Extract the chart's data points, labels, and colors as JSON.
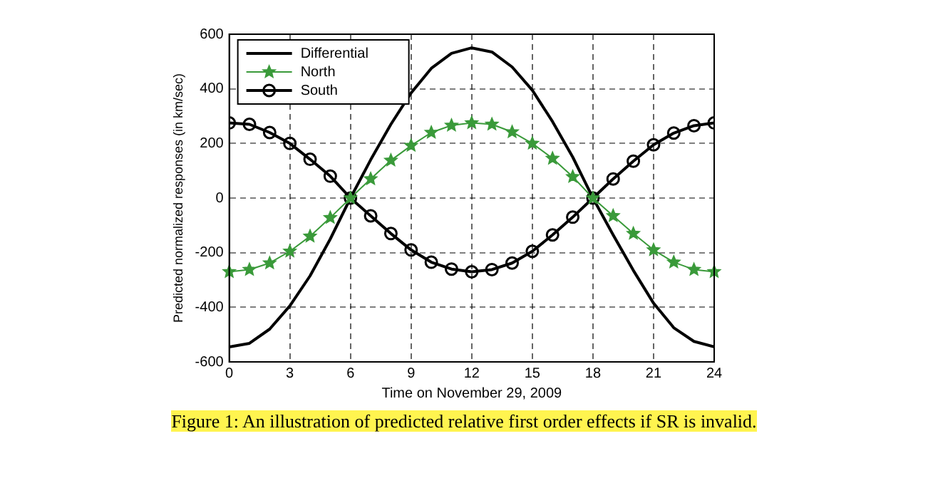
{
  "chart_data": {
    "type": "line",
    "xlabel": "Time on November 29, 2009",
    "ylabel": "Predicted normalized responses (in km/sec)",
    "x": [
      0,
      1,
      2,
      3,
      4,
      5,
      6,
      7,
      8,
      9,
      10,
      11,
      12,
      13,
      14,
      15,
      16,
      17,
      18,
      19,
      20,
      21,
      22,
      23,
      24
    ],
    "xlim": [
      0,
      24
    ],
    "xticks": [
      0,
      3,
      6,
      9,
      12,
      15,
      18,
      21,
      24
    ],
    "ylim": [
      -600,
      600
    ],
    "yticks": [
      -600,
      -400,
      -200,
      0,
      200,
      400,
      600
    ],
    "grid": true,
    "legend": "top left",
    "line_style": "solid",
    "series": [
      {
        "name": "Differential",
        "color": "#000000",
        "marker": "none",
        "values": [
          -545,
          -532,
          -480,
          -395,
          -285,
          -150,
          0,
          140,
          270,
          385,
          475,
          530,
          550,
          535,
          480,
          395,
          280,
          150,
          0,
          -135,
          -265,
          -385,
          -475,
          -525,
          -545
        ]
      },
      {
        "name": "North",
        "color": "#3a9a3a",
        "marker": "star",
        "values": [
          -270,
          -262,
          -238,
          -195,
          -140,
          -72,
          0,
          70,
          138,
          192,
          240,
          266,
          275,
          270,
          242,
          200,
          145,
          78,
          0,
          -65,
          -130,
          -190,
          -235,
          -262,
          -270
        ]
      },
      {
        "name": "South",
        "color": "#000000",
        "marker": "circle",
        "values": [
          275,
          270,
          240,
          200,
          142,
          80,
          0,
          -65,
          -130,
          -190,
          -235,
          -260,
          -270,
          -262,
          -238,
          -195,
          -135,
          -70,
          0,
          70,
          135,
          195,
          238,
          265,
          275
        ]
      }
    ],
    "annotations": [
      "Figure 1: An illustration of predicted relative first order effects if SR is invalid."
    ]
  }
}
